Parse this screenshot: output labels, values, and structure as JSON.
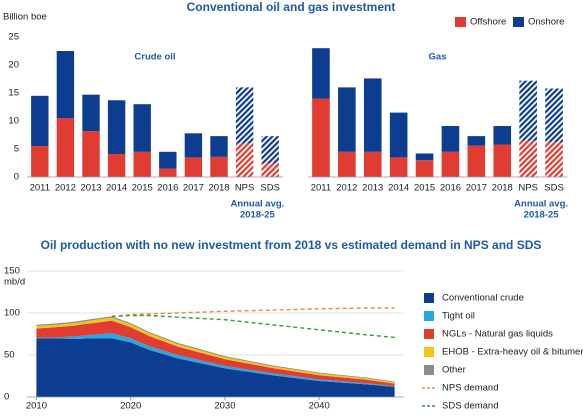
{
  "header": {
    "title": "Conventional oil and gas investment",
    "y_label": "Billion boe"
  },
  "chart_data": [
    {
      "type": "bar",
      "title": "Crude oil",
      "legend": "top-right",
      "categories": [
        "2011",
        "2012",
        "2013",
        "2014",
        "2015",
        "2016",
        "2017",
        "2018",
        "NPS",
        "SDS"
      ],
      "projection_categories": [
        "NPS",
        "SDS"
      ],
      "annotation": [
        "Annual avg.",
        "2018-25"
      ],
      "series": [
        {
          "name": "Offshore",
          "color": "#e03c31",
          "values": [
            5.5,
            10.5,
            8.2,
            4.1,
            4.5,
            1.5,
            3.5,
            3.6,
            6.0,
            2.5
          ]
        },
        {
          "name": "Onshore",
          "color": "#0d3d91",
          "values": [
            9.0,
            12.0,
            6.5,
            9.6,
            8.5,
            3.0,
            4.3,
            3.7,
            10.0,
            4.8
          ]
        }
      ],
      "ylim": [
        0,
        25
      ],
      "yticks": [
        0,
        5,
        10,
        15,
        20,
        25
      ]
    },
    {
      "type": "bar",
      "title": "Gas",
      "categories": [
        "2011",
        "2012",
        "2013",
        "2014",
        "2015",
        "2016",
        "2017",
        "2018",
        "NPS",
        "SDS"
      ],
      "projection_categories": [
        "NPS",
        "SDS"
      ],
      "annotation": [
        "Annual avg.",
        "2018-25"
      ],
      "series": [
        {
          "color": "#e03c31",
          "values": [
            14.0,
            4.5,
            4.5,
            3.5,
            3.0,
            4.5,
            5.6,
            5.8,
            6.5,
            6.2
          ]
        },
        {
          "color": "#0d3d91",
          "values": [
            9.0,
            11.5,
            13.1,
            8.0,
            1.2,
            4.6,
            1.7,
            3.3,
            10.7,
            9.6
          ]
        }
      ],
      "ylim": [
        0,
        25
      ]
    },
    {
      "type": "area",
      "title": "Oil production with no new investment from 2018 vs estimated demand in NPS and SDS",
      "y_label": "mb/d",
      "legend": "right",
      "x": [
        2010,
        2012,
        2014,
        2016,
        2018,
        2020,
        2022,
        2025,
        2030,
        2035,
        2040,
        2045,
        2048
      ],
      "series": [
        {
          "name": "Conventional crude",
          "color": "#0d3d91",
          "values": [
            70,
            70,
            69,
            70,
            70,
            65,
            56,
            46,
            34,
            26,
            19,
            15,
            12
          ]
        },
        {
          "name": "Tight oil",
          "color": "#2aa7de",
          "values": [
            0.5,
            1,
            3,
            4,
            6,
            5,
            4.5,
            4,
            3,
            2.5,
            2,
            1.5,
            1
          ]
        },
        {
          "name": "NGLs - Natural gas liquids",
          "color": "#e03c31",
          "values": [
            11,
            12,
            13,
            14,
            15,
            13,
            12,
            10,
            8,
            6,
            5,
            4,
            3
          ]
        },
        {
          "name": "EHOB - Extra-heavy oil & bitumen",
          "color": "#f5c518",
          "values": [
            3,
            3,
            3,
            3.5,
            3.5,
            3.5,
            3.3,
            3,
            2.5,
            2.2,
            2,
            1.8,
            1.5
          ]
        },
        {
          "name": "Other",
          "color": "#8c8c8c",
          "values": [
            1.5,
            1.5,
            1.5,
            1.5,
            1.5,
            1.5,
            1.5,
            1.4,
            1.2,
            1,
            1,
            0.9,
            0.8
          ]
        }
      ],
      "lines": [
        {
          "name": "NPS demand",
          "color": "#f08a3c",
          "values": [
            null,
            null,
            null,
            null,
            96,
            98,
            99,
            100,
            102,
            103.5,
            105,
            106,
            106
          ]
        },
        {
          "name": "SDS demand",
          "color": "#3a9a3a",
          "values": [
            null,
            null,
            null,
            null,
            96,
            97,
            97,
            95,
            92,
            86,
            80,
            74,
            71
          ]
        }
      ],
      "xlim": [
        2009,
        2049
      ],
      "xticks": [
        2010,
        2020,
        2030,
        2040
      ],
      "ylim": [
        0,
        150
      ],
      "yticks": [
        0,
        50,
        100,
        150
      ],
      "grid": true
    }
  ]
}
